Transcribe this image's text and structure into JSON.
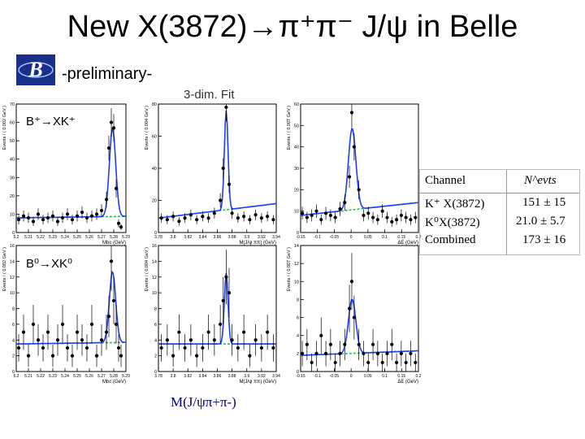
{
  "title": "New X(3872)→π⁺π⁻ J/ψ in Belle",
  "prelim": "-preliminary-",
  "fit_label": "3-dim. Fit",
  "row_labels": {
    "bplus": "B⁺→XK⁺",
    "b0": "B⁰→XK⁰"
  },
  "bottom_label": "M(J/ψπ+π-)",
  "logo_icon": "belle-logo-icon",
  "colors": {
    "fit": "#1e3cff",
    "background": "#22bb55",
    "points": "#000000",
    "label": "#000080"
  },
  "table": {
    "headers": [
      "Channel",
      "N^evts"
    ],
    "rows": [
      [
        "K⁺ X(3872)",
        "151 ± 15"
      ],
      [
        "K⁰X(3872)",
        "21.0 ± 5.7"
      ],
      [
        "Combined",
        "173 ± 16"
      ]
    ]
  },
  "chart_data": [
    {
      "id": "mbc-bplus",
      "type": "scatter",
      "ylabel": "Events / ( 0.002 GeV )",
      "xlabel": "Mbc (GeV)",
      "xlim": [
        5.2,
        5.29
      ],
      "ylim": [
        0,
        70
      ],
      "xticks": [
        "5.2",
        "5.21",
        "5.22",
        "5.23",
        "5.24",
        "5.25",
        "5.26",
        "5.27",
        "5.28",
        "5.29"
      ],
      "yticks": [
        0,
        10,
        20,
        30,
        40,
        50,
        60,
        70
      ],
      "x": [
        5.202,
        5.206,
        5.21,
        5.214,
        5.218,
        5.222,
        5.226,
        5.23,
        5.234,
        5.238,
        5.242,
        5.246,
        5.25,
        5.254,
        5.258,
        5.262,
        5.266,
        5.27,
        5.274,
        5.276,
        5.278,
        5.28,
        5.282,
        5.284,
        5.286
      ],
      "y": [
        7,
        9,
        8,
        6,
        10,
        7,
        8,
        9,
        6,
        8,
        10,
        7,
        9,
        11,
        8,
        9,
        10,
        12,
        18,
        46,
        60,
        57,
        24,
        5,
        3
      ],
      "peak": 5.279,
      "peak_amp": 48,
      "peak_sigma": 0.0026,
      "bkg": [
        8,
        0.8
      ]
    },
    {
      "id": "mass-bplus",
      "type": "scatter",
      "ylabel": "Events / ( 0.004 GeV )",
      "xlabel": "M(J/ψ ππ) (GeV)",
      "xlim": [
        3.78,
        3.94
      ],
      "ylim": [
        0,
        80
      ],
      "xticks": [
        "3.78",
        "3.8",
        "3.82",
        "3.84",
        "3.86",
        "3.88",
        "3.9",
        "3.92",
        "3.94"
      ],
      "yticks": [
        0,
        20,
        40,
        60,
        80
      ],
      "x": [
        3.784,
        3.792,
        3.8,
        3.808,
        3.816,
        3.824,
        3.832,
        3.84,
        3.848,
        3.856,
        3.864,
        3.868,
        3.872,
        3.876,
        3.88,
        3.888,
        3.896,
        3.904,
        3.912,
        3.92,
        3.928,
        3.936
      ],
      "y": [
        9,
        8,
        10,
        7,
        9,
        11,
        8,
        10,
        9,
        12,
        20,
        40,
        78,
        30,
        12,
        9,
        10,
        8,
        11,
        9,
        10,
        8
      ],
      "peak": 3.872,
      "peak_amp": 62,
      "peak_sigma": 0.0025,
      "bkg": [
        9,
        9
      ]
    },
    {
      "id": "de-bplus",
      "type": "scatter",
      "ylabel": "Events / ( 0.007 GeV )",
      "xlabel": "ΔE (GeV)",
      "xlim": [
        -0.15,
        0.2
      ],
      "ylim": [
        0,
        60
      ],
      "xticks": [
        "-0.15",
        "-0.1",
        "-0.05",
        "0",
        "0.05",
        "0.1",
        "0.15",
        "0.2"
      ],
      "yticks": [
        0,
        10,
        20,
        30,
        40,
        50,
        60
      ],
      "x": [
        -0.145,
        -0.131,
        -0.117,
        -0.103,
        -0.089,
        -0.075,
        -0.061,
        -0.047,
        -0.033,
        -0.019,
        -0.005,
        0.002,
        0.009,
        0.023,
        0.037,
        0.051,
        0.065,
        0.079,
        0.093,
        0.107,
        0.121,
        0.135,
        0.149,
        0.163,
        0.177,
        0.191
      ],
      "y": [
        9,
        7,
        8,
        10,
        6,
        9,
        8,
        7,
        11,
        14,
        26,
        56,
        40,
        20,
        8,
        9,
        7,
        6,
        10,
        7,
        5,
        6,
        8,
        7,
        6,
        7
      ],
      "peak": 0.003,
      "peak_amp": 38,
      "peak_sigma": 0.011,
      "bkg": [
        8,
        6
      ]
    },
    {
      "id": "mbc-b0",
      "type": "scatter",
      "ylabel": "Events / ( 0.002 GeV )",
      "xlabel": "Mbc (GeV)",
      "xlim": [
        5.2,
        5.29
      ],
      "ylim": [
        0,
        16
      ],
      "xticks": [
        "5.2",
        "5.21",
        "5.22",
        "5.23",
        "5.24",
        "5.25",
        "5.26",
        "5.27",
        "5.28",
        "5.29"
      ],
      "yticks": [
        0,
        2,
        4,
        6,
        8,
        10,
        12,
        14,
        16
      ],
      "x": [
        5.202,
        5.206,
        5.21,
        5.214,
        5.218,
        5.222,
        5.226,
        5.23,
        5.234,
        5.238,
        5.242,
        5.246,
        5.25,
        5.254,
        5.258,
        5.262,
        5.266,
        5.27,
        5.274,
        5.276,
        5.278,
        5.28,
        5.282,
        5.284,
        5.286
      ],
      "y": [
        3,
        5,
        2,
        6,
        4,
        3,
        5,
        2,
        4,
        6,
        3,
        2,
        5,
        4,
        3,
        6,
        2,
        4,
        5,
        7,
        14,
        9,
        6,
        3,
        2
      ],
      "peak": 5.279,
      "peak_amp": 9,
      "peak_sigma": 0.0026,
      "bkg": [
        3.5,
        0.2
      ]
    },
    {
      "id": "mass-b0",
      "type": "scatter",
      "ylabel": "Events / ( 0.004 GeV )",
      "xlabel": "M(J/ψ ππ) (GeV)",
      "xlim": [
        3.78,
        3.94
      ],
      "ylim": [
        0,
        16
      ],
      "xticks": [
        "3.78",
        "3.8",
        "3.82",
        "3.84",
        "3.86",
        "3.88",
        "3.9",
        "3.92",
        "3.94"
      ],
      "yticks": [
        0,
        2,
        4,
        6,
        8,
        10,
        12,
        14,
        16
      ],
      "x": [
        3.784,
        3.792,
        3.8,
        3.808,
        3.816,
        3.824,
        3.832,
        3.84,
        3.848,
        3.856,
        3.864,
        3.868,
        3.872,
        3.876,
        3.88,
        3.888,
        3.896,
        3.904,
        3.912,
        3.92,
        3.928,
        3.936
      ],
      "y": [
        3,
        4,
        2,
        5,
        3,
        4,
        2,
        3,
        5,
        4,
        6,
        9,
        12,
        10,
        4,
        3,
        5,
        2,
        4,
        3,
        5,
        3
      ],
      "peak": 3.872,
      "peak_amp": 9,
      "peak_sigma": 0.0025,
      "bkg": [
        3.5,
        0
      ]
    },
    {
      "id": "de-b0",
      "type": "scatter",
      "ylabel": "Events / ( 0.007 GeV )",
      "xlabel": "ΔE (GeV)",
      "xlim": [
        -0.15,
        0.2
      ],
      "ylim": [
        0,
        14
      ],
      "xticks": [
        "-0.15",
        "-0.1",
        "-0.05",
        "0",
        "0.05",
        "0.1",
        "0.15",
        "0.2"
      ],
      "yticks": [
        0,
        2,
        4,
        6,
        8,
        10,
        12,
        14
      ],
      "x": [
        -0.145,
        -0.131,
        -0.117,
        -0.103,
        -0.089,
        -0.075,
        -0.061,
        -0.047,
        -0.033,
        -0.019,
        -0.005,
        0.002,
        0.009,
        0.023,
        0.037,
        0.051,
        0.065,
        0.079,
        0.093,
        0.107,
        0.121,
        0.135,
        0.149,
        0.163,
        0.177,
        0.191
      ],
      "y": [
        2,
        3,
        1,
        2,
        4,
        2,
        3,
        1,
        2,
        3,
        7,
        10,
        6,
        3,
        2,
        1,
        3,
        2,
        1,
        2,
        3,
        1,
        2,
        1,
        2,
        1
      ],
      "peak": 0.003,
      "peak_amp": 6,
      "peak_sigma": 0.011,
      "bkg": [
        1.8,
        0.5
      ]
    }
  ]
}
